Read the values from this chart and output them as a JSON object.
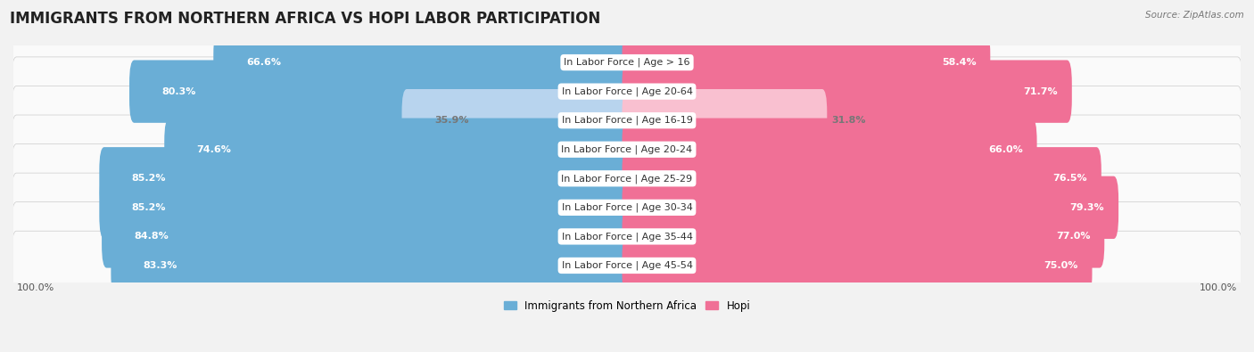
{
  "title": "IMMIGRANTS FROM NORTHERN AFRICA VS HOPI LABOR PARTICIPATION",
  "source": "Source: ZipAtlas.com",
  "categories": [
    "In Labor Force | Age > 16",
    "In Labor Force | Age 20-64",
    "In Labor Force | Age 16-19",
    "In Labor Force | Age 20-24",
    "In Labor Force | Age 25-29",
    "In Labor Force | Age 30-34",
    "In Labor Force | Age 35-44",
    "In Labor Force | Age 45-54"
  ],
  "left_values": [
    66.6,
    80.3,
    35.9,
    74.6,
    85.2,
    85.2,
    84.8,
    83.3
  ],
  "right_values": [
    58.4,
    71.7,
    31.8,
    66.0,
    76.5,
    79.3,
    77.0,
    75.0
  ],
  "left_color": "#6aaed6",
  "right_color": "#f07096",
  "left_color_light": "#b8d4ee",
  "right_color_light": "#f9c0d0",
  "left_label": "Immigrants from Northern Africa",
  "right_label": "Hopi",
  "background_color": "#f2f2f2",
  "row_bg_color": "#e4e4e4",
  "row_inner_color": "#fafafa",
  "max_value": 100.0,
  "title_fontsize": 12,
  "label_fontsize": 8,
  "value_fontsize": 8,
  "axis_label_fontsize": 8
}
